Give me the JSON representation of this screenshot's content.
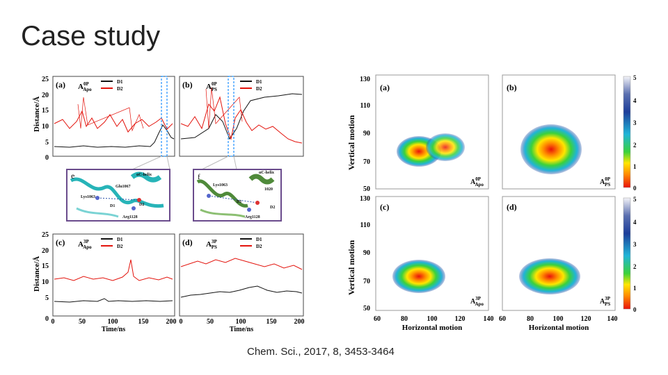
{
  "slide": {
    "title": "Case study",
    "citation": "Chem. Sci., 2017, 8, 3453-3464"
  },
  "colors": {
    "d1": "#111111",
    "d2": "#e3120b",
    "highlight": "#1e90ff",
    "inset_border": "#6a4b8c"
  },
  "left_figure": {
    "ylabel": "Distance/Å",
    "xlabel": "Time/ns",
    "y_ticks": [
      "0",
      "5",
      "10",
      "15",
      "20",
      "25"
    ],
    "x_ticks": [
      "0",
      "50",
      "100",
      "150",
      "200"
    ],
    "panels": [
      {
        "label": "(a)",
        "system": "A",
        "sup": "0P",
        "sub": "Apo",
        "legend": [
          "D1",
          "D2"
        ]
      },
      {
        "label": "(b)",
        "system": "A",
        "sup": "0P",
        "sub": "PS",
        "legend": [
          "D1",
          "D2"
        ]
      },
      {
        "label": "(c)",
        "system": "A",
        "sup": "3P",
        "sub": "Apo",
        "legend": [
          "D1",
          "D2"
        ]
      },
      {
        "label": "(d)",
        "system": "A",
        "sup": "3P",
        "sub": "PS",
        "legend": [
          "D1",
          "D2"
        ]
      }
    ],
    "insets": [
      {
        "letter": "e",
        "labels": [
          "αC-helix",
          "Glu1067",
          "Lys1063",
          "D1",
          "D2",
          "Arg1128"
        ]
      },
      {
        "letter": "f",
        "labels": [
          "αC-helix",
          "Lys1063",
          "1020",
          "D1",
          "D2",
          "Arg1128"
        ]
      }
    ]
  },
  "right_figure": {
    "ylabel": "Vertical motion",
    "xlabel": "Horizontal motion",
    "y_ticks": [
      "50",
      "70",
      "90",
      "110",
      "130"
    ],
    "x_ticks": [
      "60",
      "80",
      "100",
      "120",
      "140"
    ],
    "colorbar_ticks": [
      "0",
      "1",
      "2",
      "3",
      "4",
      "5"
    ],
    "panels": [
      {
        "label": "(a)",
        "system": "A",
        "sup": "0P",
        "sub": "Apo"
      },
      {
        "label": "(b)",
        "system": "A",
        "sup": "0P",
        "sub": "PS"
      },
      {
        "label": "(c)",
        "system": "A",
        "sup": "3P",
        "sub": "Apo"
      },
      {
        "label": "(d)",
        "system": "A",
        "sup": "3P",
        "sub": "PS"
      }
    ]
  }
}
